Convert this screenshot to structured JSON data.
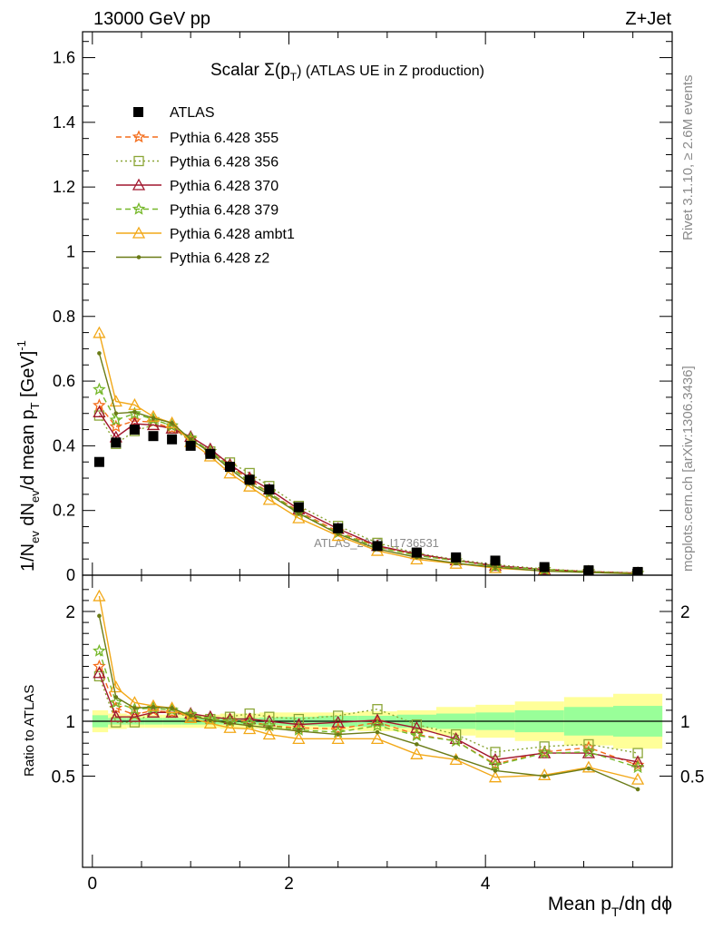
{
  "header": {
    "energy": "13000 GeV pp",
    "process": "Z+Jet",
    "title_main": "Scalar Σ(p",
    "title_sub": "T",
    "title_rest": ") (ATLAS UE in Z production)"
  },
  "side": {
    "rivet": "Rivet 3.1.10, ≥ 2.6M events",
    "mcplots": "mcplots.cern.ch [arXiv:1306.3436]"
  },
  "watermark": "ATLAS_2019_I1736531",
  "axes": {
    "ylabel_main": "1/N_ev dN_ev/d mean p_T [GeV]^-1",
    "ylabel_ratio": "Ratio to ATLAS",
    "xlabel": "Mean p_T/dη dϕ"
  },
  "chart_data": {
    "type": "scatter",
    "main": {
      "xlim": [
        -0.1,
        5.9
      ],
      "ylim": [
        0,
        1.68
      ],
      "yticks": [
        0,
        0.2,
        0.4,
        0.6,
        0.8,
        1,
        1.2,
        1.4,
        1.6
      ],
      "ytick_labels": [
        "0",
        "0.2",
        "0.4",
        "0.6",
        "0.8",
        "1",
        "1.2",
        "1.4",
        "1.6"
      ]
    },
    "ratio": {
      "ylim": [
        0.35,
        2.3
      ],
      "yticks": [
        0.5,
        1,
        2
      ],
      "ytick_labels": [
        "0.5",
        "1",
        "2"
      ]
    },
    "xticks": [
      0,
      2,
      4
    ],
    "xtick_labels": [
      "0",
      "2",
      "4"
    ],
    "x": [
      0.07,
      0.24,
      0.43,
      0.62,
      0.81,
      1.0,
      1.2,
      1.4,
      1.6,
      1.8,
      2.1,
      2.5,
      2.9,
      3.3,
      3.7,
      4.1,
      4.6,
      5.05,
      5.55
    ],
    "data": {
      "name": "ATLAS",
      "values": [
        0.35,
        0.41,
        0.45,
        0.43,
        0.42,
        0.4,
        0.375,
        0.335,
        0.295,
        0.265,
        0.21,
        0.145,
        0.09,
        0.07,
        0.055,
        0.045,
        0.025,
        0.015,
        0.01
      ]
    },
    "band_edges": [
      0,
      0.16,
      0.35,
      0.53,
      0.72,
      0.91,
      1.1,
      1.3,
      1.5,
      1.7,
      1.9,
      2.3,
      2.7,
      3.1,
      3.5,
      3.9,
      4.3,
      4.8,
      5.3,
      5.8
    ],
    "band_inner": [
      0.055,
      0.03,
      0.03,
      0.03,
      0.03,
      0.03,
      0.03,
      0.03,
      0.03,
      0.035,
      0.04,
      0.05,
      0.05,
      0.06,
      0.07,
      0.08,
      0.1,
      0.13,
      0.14
    ],
    "band_outer": [
      0.1,
      0.07,
      0.06,
      0.06,
      0.06,
      0.06,
      0.06,
      0.07,
      0.07,
      0.08,
      0.08,
      0.08,
      0.09,
      0.1,
      0.13,
      0.15,
      0.18,
      0.22,
      0.25
    ],
    "series": [
      {
        "name": "Pythia 6.428 355",
        "color": "#f46d1b",
        "dash": "6,4",
        "marker": "star",
        "ratio": [
          1.5,
          1.12,
          1.06,
          1.1,
          1.08,
          1.05,
          1.02,
          1.01,
          1.0,
          0.96,
          0.94,
          0.93,
          0.99,
          0.88,
          0.82,
          0.61,
          0.72,
          0.76,
          0.6
        ]
      },
      {
        "name": "Pythia 6.428 356",
        "color": "#8ba637",
        "dash": "2,3",
        "marker": "square",
        "ratio": [
          1.41,
          0.99,
          0.99,
          1.08,
          1.08,
          1.04,
          1.02,
          1.04,
          1.07,
          1.04,
          1.02,
          1.05,
          1.11,
          0.97,
          0.88,
          0.72,
          0.77,
          0.79,
          0.71
        ]
      },
      {
        "name": "Pythia 6.428 370",
        "color": "#a1162e",
        "dash": "",
        "marker": "triangle",
        "ratio": [
          1.44,
          1.04,
          1.04,
          1.08,
          1.08,
          1.07,
          1.04,
          1.02,
          1.02,
          1.0,
          0.97,
          0.99,
          1.01,
          0.94,
          0.84,
          0.65,
          0.71,
          0.71,
          0.63
        ]
      },
      {
        "name": "Pythia 6.428 379",
        "color": "#76b82a",
        "dash": "6,4",
        "marker": "star",
        "ratio": [
          1.64,
          1.17,
          1.11,
          1.12,
          1.1,
          1.06,
          1.02,
          1.0,
          0.98,
          0.96,
          0.92,
          0.9,
          0.96,
          0.87,
          0.82,
          0.6,
          0.71,
          0.72,
          0.58
        ]
      },
      {
        "name": "Pythia 6.428 ambt1",
        "color": "#f2a818",
        "dash": "",
        "marker": "triangle",
        "ratio": [
          2.14,
          1.31,
          1.17,
          1.14,
          1.12,
          1.03,
          0.98,
          0.94,
          0.93,
          0.88,
          0.84,
          0.84,
          0.84,
          0.7,
          0.65,
          0.49,
          0.51,
          0.58,
          0.47
        ]
      },
      {
        "name": "Pythia 6.428 z2",
        "color": "#6a7b16",
        "dash": "",
        "marker": "dot",
        "ratio": [
          1.96,
          1.22,
          1.12,
          1.13,
          1.12,
          1.05,
          1.01,
          0.98,
          0.96,
          0.94,
          0.91,
          0.88,
          0.9,
          0.79,
          0.67,
          0.55,
          0.5,
          0.57,
          0.38
        ]
      }
    ]
  }
}
